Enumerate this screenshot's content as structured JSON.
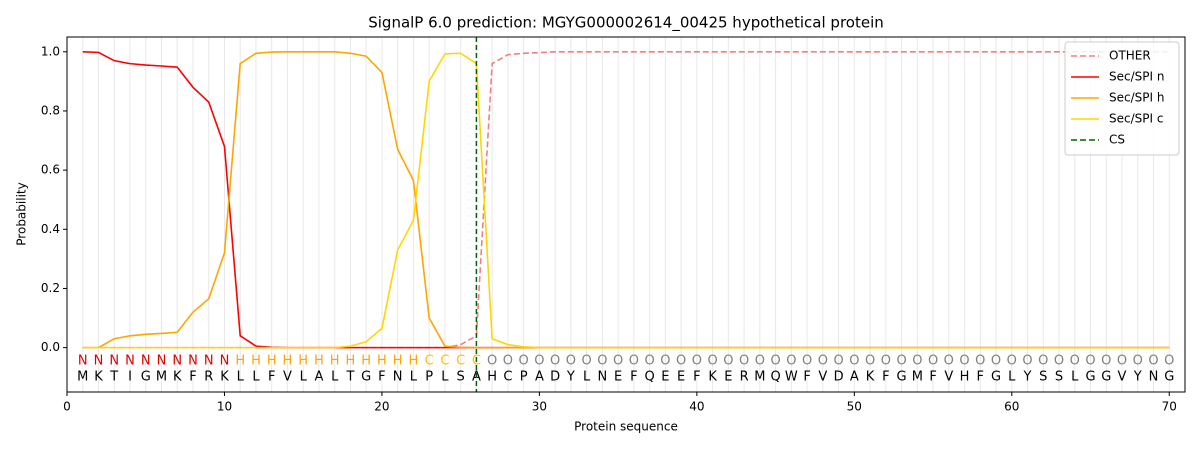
{
  "chart_data": {
    "type": "line",
    "title": "SignalP 6.0 prediction: MGYG000002614_00425 hypothetical protein",
    "xlabel": "Protein sequence",
    "ylabel": "Probability",
    "xlim": [
      0,
      71
    ],
    "ylim": [
      -0.15,
      1.05
    ],
    "xticks": [
      0,
      10,
      20,
      30,
      40,
      50,
      60,
      70
    ],
    "yticks": [
      {
        "value": 0,
        "label": "0.0"
      },
      {
        "value": 0.2,
        "label": "0.2"
      },
      {
        "value": 0.4,
        "label": "0.4"
      },
      {
        "value": 0.6,
        "label": "0.6"
      },
      {
        "value": 0.8,
        "label": "0.8"
      },
      {
        "value": 1,
        "label": "1.0"
      }
    ],
    "grid": true,
    "legend": "upper right",
    "x": [
      1,
      2,
      3,
      4,
      5,
      6,
      7,
      8,
      9,
      10,
      11,
      12,
      13,
      14,
      15,
      16,
      17,
      18,
      19,
      20,
      21,
      22,
      23,
      24,
      25,
      26,
      27,
      28,
      29,
      30,
      31,
      32,
      33,
      34,
      35,
      36,
      37,
      38,
      39,
      40,
      41,
      42,
      43,
      44,
      45,
      46,
      47,
      48,
      49,
      50,
      51,
      52,
      53,
      54,
      55,
      56,
      57,
      58,
      59,
      60,
      61,
      62,
      63,
      64,
      65,
      66,
      67,
      68,
      69,
      70
    ],
    "residues": [
      "M",
      "K",
      "T",
      "I",
      "G",
      "M",
      "K",
      "F",
      "R",
      "K",
      "L",
      "L",
      "F",
      "V",
      "L",
      "A",
      "L",
      "T",
      "G",
      "F",
      "N",
      "L",
      "P",
      "L",
      "S",
      "A",
      "H",
      "C",
      "P",
      "A",
      "D",
      "Y",
      "L",
      "N",
      "E",
      "F",
      "Q",
      "E",
      "E",
      "F",
      "K",
      "E",
      "R",
      "M",
      "Q",
      "W",
      "F",
      "V",
      "D",
      "A",
      "K",
      "F",
      "G",
      "M",
      "F",
      "V",
      "H",
      "F",
      "G",
      "L",
      "Y",
      "S",
      "S",
      "L",
      "G",
      "G",
      "V",
      "Y",
      "N",
      "G"
    ],
    "labels": [
      "N",
      "N",
      "N",
      "N",
      "N",
      "N",
      "N",
      "N",
      "N",
      "N",
      "H",
      "H",
      "H",
      "H",
      "H",
      "H",
      "H",
      "H",
      "H",
      "H",
      "H",
      "H",
      "C",
      "C",
      "C",
      "C",
      "O",
      "O",
      "O",
      "O",
      "O",
      "O",
      "O",
      "O",
      "O",
      "O",
      "O",
      "O",
      "O",
      "O",
      "O",
      "O",
      "O",
      "O",
      "O",
      "O",
      "O",
      "O",
      "O",
      "O",
      "O",
      "O",
      "O",
      "O",
      "O",
      "O",
      "O",
      "O",
      "O",
      "O",
      "O",
      "O",
      "O",
      "O",
      "O",
      "O",
      "O",
      "O",
      "O",
      "O"
    ],
    "label_colors": {
      "N": "#e00000",
      "H": "#ffa500",
      "C": "#ffbf00",
      "O": "#808080"
    },
    "series": [
      {
        "name": "OTHER",
        "color": "#f08080",
        "linestyle": "dashed",
        "values": [
          0,
          0,
          0,
          0,
          0,
          0,
          0,
          0,
          0,
          0,
          0,
          0,
          0,
          0,
          0,
          0,
          0,
          0,
          0,
          0,
          0,
          0,
          0,
          0,
          0.01,
          0.04,
          0.96,
          0.99,
          0.995,
          0.997,
          1,
          1,
          1,
          1,
          1,
          1,
          1,
          1,
          1,
          1,
          1,
          1,
          1,
          1,
          1,
          1,
          1,
          1,
          1,
          1,
          1,
          1,
          1,
          1,
          1,
          1,
          1,
          1,
          1,
          1,
          1,
          1,
          1,
          1,
          1,
          1,
          1,
          1,
          1,
          1
        ]
      },
      {
        "name": "Sec/SPI n",
        "color": "#ff0000",
        "linestyle": "solid",
        "values": [
          1.0,
          0.998,
          0.97,
          0.96,
          0.955,
          0.952,
          0.948,
          0.88,
          0.83,
          0.68,
          0.04,
          0.005,
          0.001,
          0,
          0,
          0,
          0,
          0,
          0,
          0,
          0,
          0,
          0,
          0,
          0,
          0,
          0,
          0,
          0,
          0,
          0,
          0,
          0,
          0,
          0,
          0,
          0,
          0,
          0,
          0,
          0,
          0,
          0,
          0,
          0,
          0,
          0,
          0,
          0,
          0,
          0,
          0,
          0,
          0,
          0,
          0,
          0,
          0,
          0,
          0,
          0,
          0,
          0,
          0,
          0,
          0,
          0,
          0,
          0,
          0
        ]
      },
      {
        "name": "Sec/SPI h",
        "color": "#ffa500",
        "linestyle": "solid",
        "values": [
          0,
          0,
          0.03,
          0.04,
          0.045,
          0.048,
          0.052,
          0.12,
          0.165,
          0.32,
          0.96,
          0.995,
          0.999,
          1,
          1,
          1,
          1,
          0.995,
          0.985,
          0.93,
          0.67,
          0.565,
          0.1,
          0.005,
          0.001,
          0,
          0,
          0,
          0,
          0,
          0,
          0,
          0,
          0,
          0,
          0,
          0,
          0,
          0,
          0,
          0,
          0,
          0,
          0,
          0,
          0,
          0,
          0,
          0,
          0,
          0,
          0,
          0,
          0,
          0,
          0,
          0,
          0,
          0,
          0,
          0,
          0,
          0,
          0,
          0,
          0,
          0,
          0,
          0,
          0
        ]
      },
      {
        "name": "Sec/SPI c",
        "color": "#ffd700",
        "linestyle": "solid",
        "values": [
          0,
          0,
          0,
          0,
          0,
          0,
          0,
          0,
          0,
          0,
          0,
          0,
          0,
          0,
          0,
          0,
          0,
          0.005,
          0.02,
          0.065,
          0.33,
          0.43,
          0.9,
          0.993,
          0.995,
          0.96,
          0.03,
          0.01,
          0.003,
          0,
          0,
          0,
          0,
          0,
          0,
          0,
          0,
          0,
          0,
          0,
          0,
          0,
          0,
          0,
          0,
          0,
          0,
          0,
          0,
          0,
          0,
          0,
          0,
          0,
          0,
          0,
          0,
          0,
          0,
          0,
          0,
          0,
          0,
          0,
          0,
          0,
          0,
          0,
          0,
          0
        ]
      }
    ],
    "cs": {
      "name": "CS",
      "x": 26,
      "color": "#006400"
    }
  }
}
